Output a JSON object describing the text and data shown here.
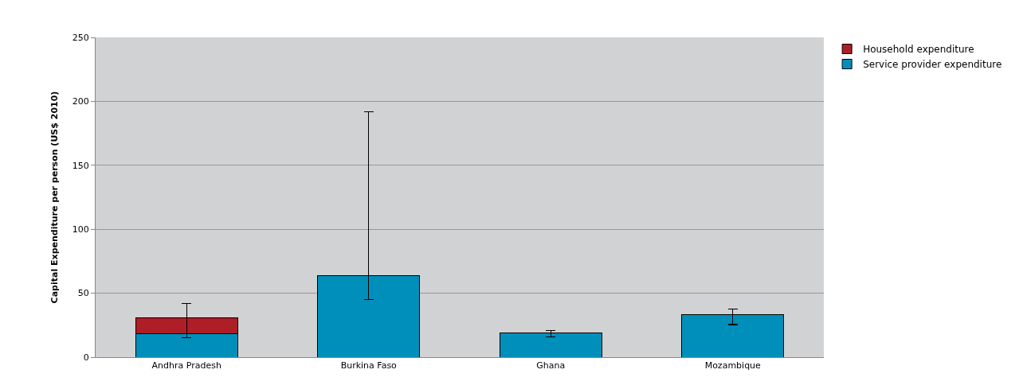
{
  "chart_data": {
    "type": "bar",
    "stacked": true,
    "ylabel": "Capital Expenditure per person (US$ 2010)",
    "categories": [
      "Andhra Pradesh",
      "Burkina Faso",
      "Ghana",
      "Mozambique"
    ],
    "series": [
      {
        "name": "Service provider expenditure",
        "color": "#008fbb",
        "values": [
          18.5,
          64,
          19,
          33
        ],
        "errors": [
          null,
          [
            45,
            192
          ],
          [
            16,
            21
          ],
          [
            25.5,
            37.5
          ]
        ]
      },
      {
        "name": "Household expenditure",
        "color": "#ae1e27",
        "values": [
          12.5,
          null,
          null,
          null
        ],
        "errors": [
          [
            15,
            42
          ],
          null,
          null,
          null
        ]
      }
    ],
    "ylim": [
      0,
      250
    ],
    "yticks": [
      0,
      50,
      100,
      150,
      200,
      250
    ],
    "grid": "y",
    "legend": "top right"
  }
}
